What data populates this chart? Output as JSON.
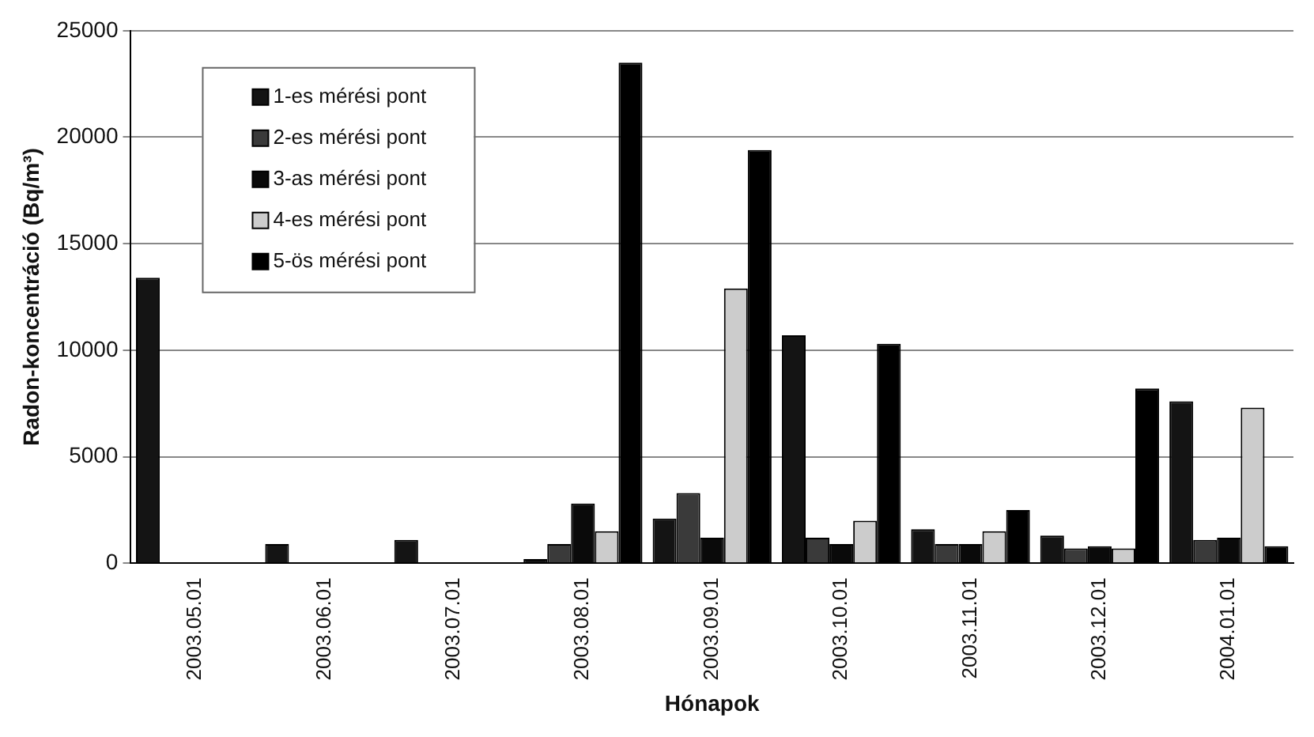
{
  "chart_data": {
    "type": "bar",
    "xlabel": "Hónapok",
    "ylabel": "Radon-koncentráció (Bq/m³)",
    "categories": [
      "2003.05.01",
      "2003.06.01",
      "2003.07.01",
      "2003.08.01",
      "2003.09.01",
      "2003.10.01",
      "2003.11.01",
      "2003.12.01",
      "2004.01.01"
    ],
    "series": [
      {
        "name": "1-es mérési pont",
        "color": "#141414",
        "values": [
          13400,
          900,
          1100,
          200,
          2100,
          10700,
          1600,
          1300,
          7600
        ]
      },
      {
        "name": "2-es mérési pont",
        "color": "#3a3a3a",
        "values": [
          null,
          null,
          null,
          900,
          3300,
          1200,
          900,
          700,
          1100
        ]
      },
      {
        "name": "3-as mérési pont",
        "color": "#0a0a0a",
        "values": [
          null,
          null,
          null,
          2800,
          1200,
          900,
          900,
          800,
          1200
        ]
      },
      {
        "name": "4-es mérési pont",
        "color": "#cccccc",
        "values": [
          null,
          null,
          null,
          1500,
          12900,
          2000,
          1500,
          700,
          7300
        ]
      },
      {
        "name": "5-ös mérési pont",
        "color": "#000000",
        "values": [
          null,
          null,
          null,
          23500,
          19400,
          10300,
          2500,
          8200,
          800
        ]
      }
    ],
    "ylim": [
      0,
      25000
    ],
    "yticks": [
      0,
      5000,
      10000,
      15000,
      20000,
      25000
    ],
    "grid": "y",
    "legend": "top left"
  }
}
